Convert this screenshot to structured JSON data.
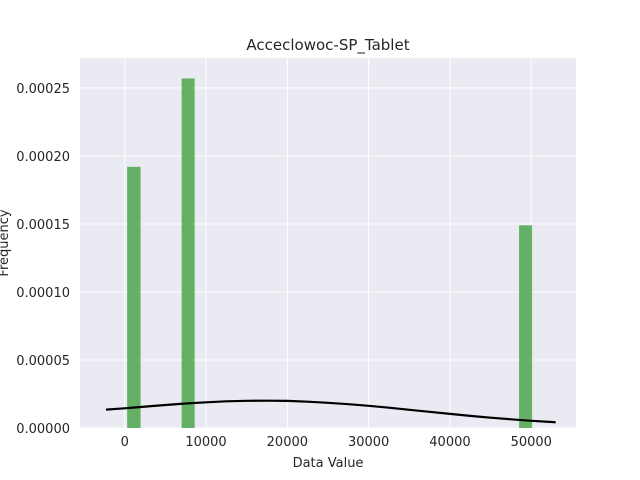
{
  "chart_data": {
    "type": "bar",
    "title": "Acceclowoc-SP_Tablet",
    "xlabel": "Data Value",
    "ylabel": "Frequency",
    "xlim": [
      -5500,
      55500
    ],
    "ylim": [
      0,
      0.000272
    ],
    "x_ticks": [
      0,
      10000,
      20000,
      30000,
      40000,
      50000
    ],
    "x_tick_labels": [
      "0",
      "10000",
      "20000",
      "30000",
      "40000",
      "50000"
    ],
    "y_ticks": [
      0,
      5e-05,
      0.0001,
      0.00015,
      0.0002,
      0.00025
    ],
    "y_tick_labels": [
      "0.00000",
      "0.00005",
      "0.00010",
      "0.00015",
      "0.00020",
      "0.00025"
    ],
    "grid": true,
    "background": "#eaeaf2",
    "bar_color": "#4ca64c",
    "bar_opacity": 0.85,
    "bars": [
      {
        "x0": 300,
        "x1": 1950,
        "value": 0.000192
      },
      {
        "x0": 7000,
        "x1": 8600,
        "value": 0.000257
      },
      {
        "x0": 48500,
        "x1": 50100,
        "value": 0.000149
      }
    ],
    "density_line": {
      "color": "#000000",
      "x": [
        -2300,
        0,
        2500,
        5000,
        7500,
        10000,
        12500,
        15000,
        17500,
        20000,
        22500,
        25000,
        27500,
        30000,
        32500,
        35000,
        37500,
        40000,
        42500,
        45000,
        47500,
        50000,
        52500,
        53000
      ],
      "y": [
        1.35e-05,
        1.45e-05,
        1.57e-05,
        1.69e-05,
        1.8e-05,
        1.89e-05,
        1.96e-05,
        2e-05,
        2.01e-05,
        1.99e-05,
        1.93e-05,
        1.85e-05,
        1.75e-05,
        1.63e-05,
        1.49e-05,
        1.34e-05,
        1.19e-05,
        1.04e-05,
        8.9e-06,
        7.6e-06,
        6.4e-06,
        5.3e-06,
        4.4e-06,
        4.2e-06
      ]
    }
  }
}
